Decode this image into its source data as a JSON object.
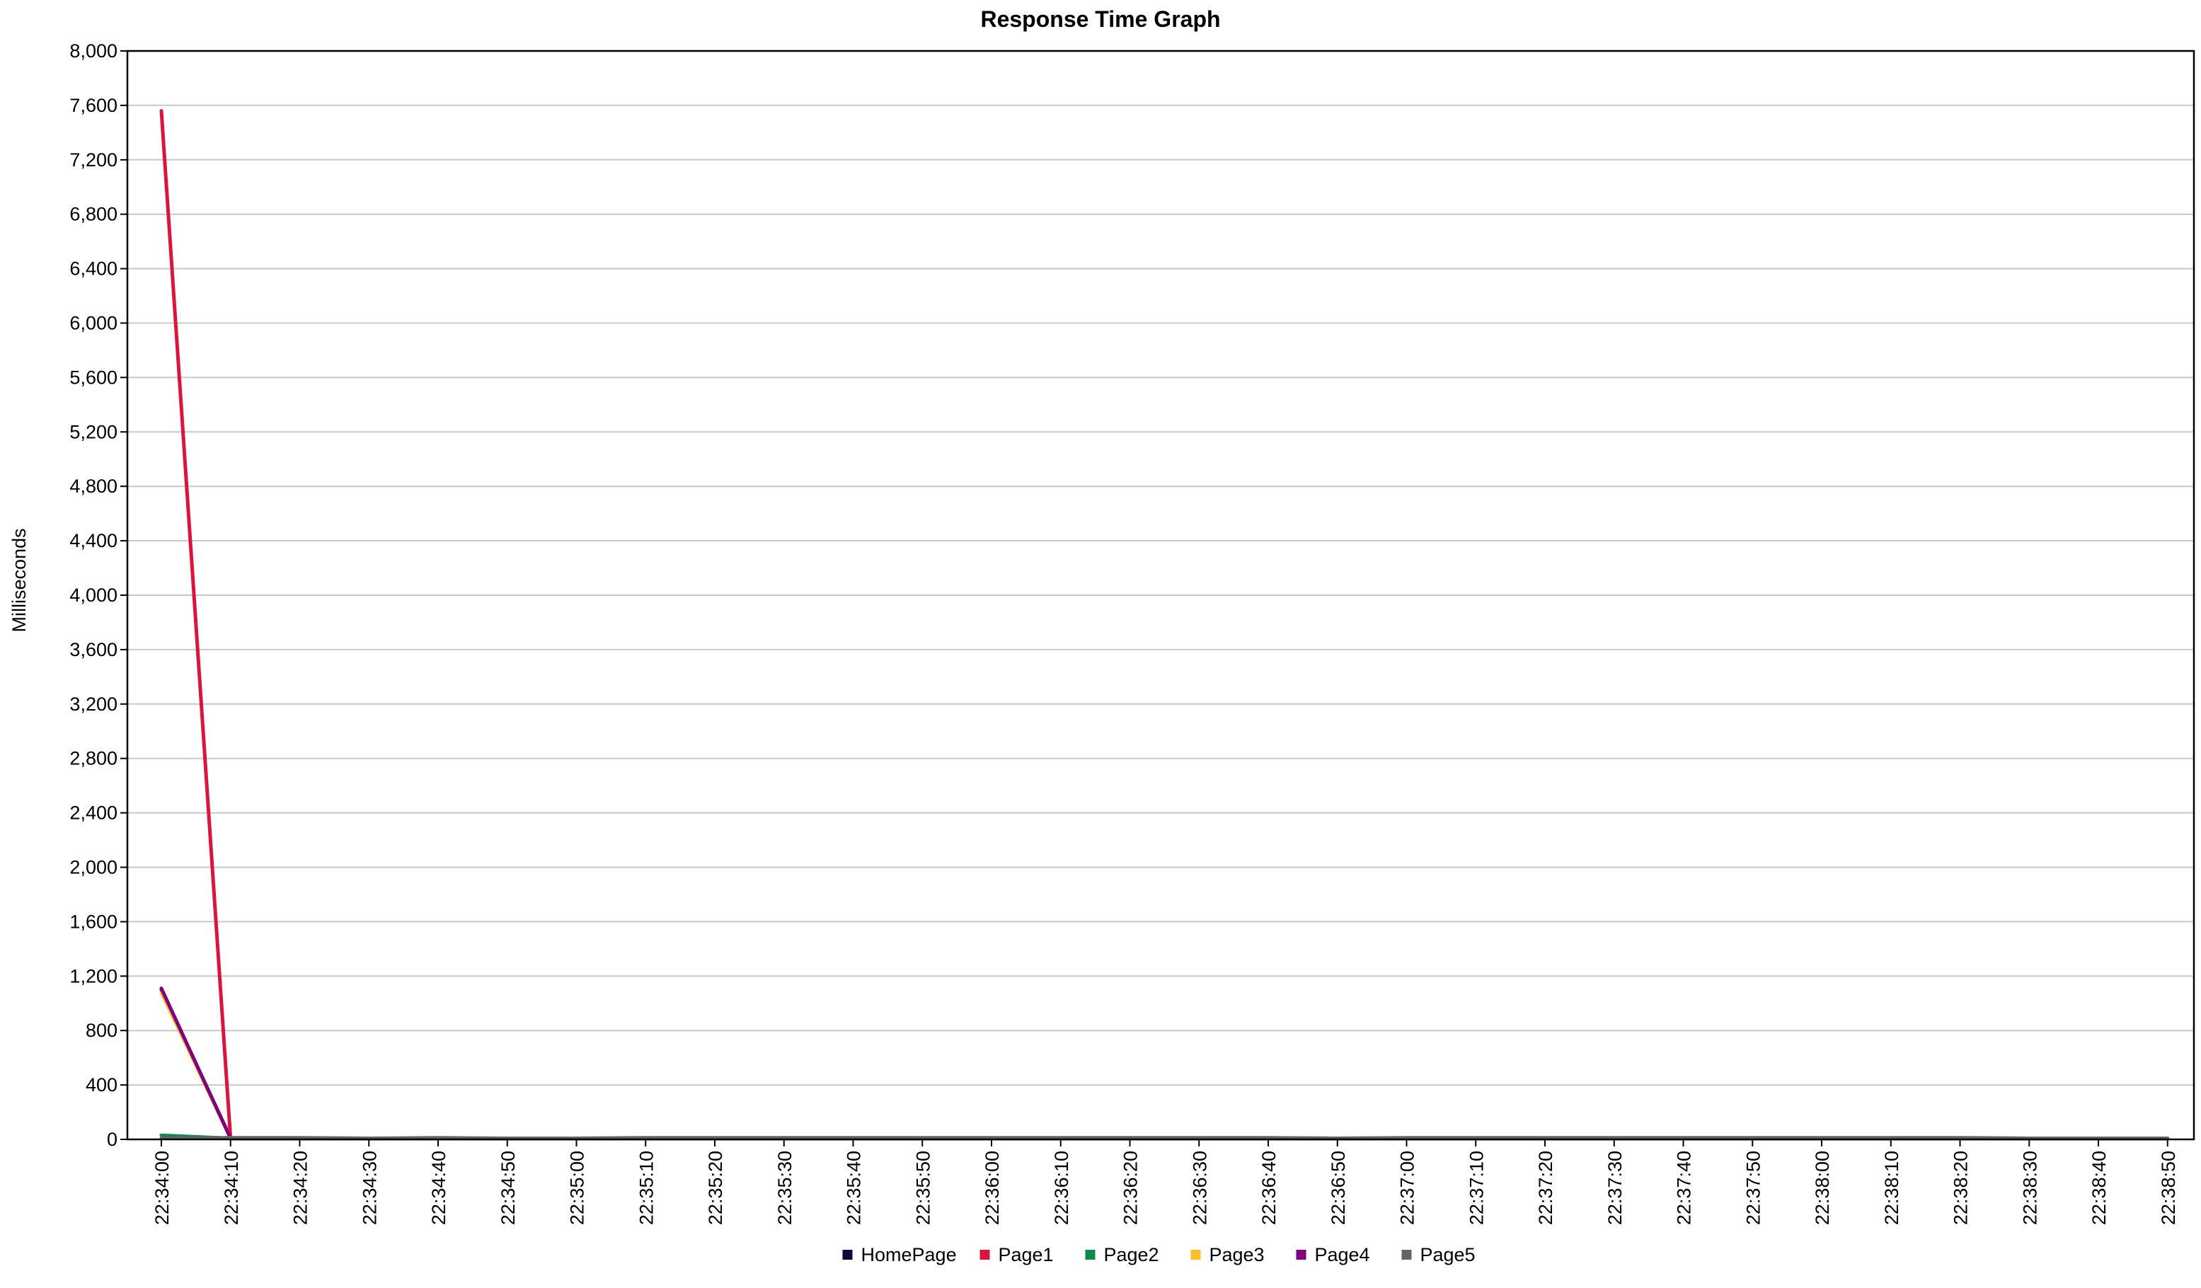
{
  "chart_data": {
    "type": "line",
    "title": "Response Time Graph",
    "xlabel": "",
    "ylabel": "Milliseconds",
    "ylim": [
      0,
      8000
    ],
    "yticks": [
      0,
      400,
      800,
      1200,
      1600,
      2000,
      2400,
      2800,
      3200,
      3600,
      4000,
      4400,
      4800,
      5200,
      5600,
      6000,
      6400,
      6800,
      7200,
      7600,
      8000
    ],
    "ytick_labels": [
      "0",
      "400",
      "800",
      "1,200",
      "1,600",
      "2,000",
      "2,400",
      "2,800",
      "3,200",
      "3,600",
      "4,000",
      "4,400",
      "4,800",
      "5,200",
      "5,600",
      "6,000",
      "6,400",
      "6,800",
      "7,200",
      "7,600",
      "8,000"
    ],
    "x": [
      "22:34:00",
      "22:34:10",
      "22:34:20",
      "22:34:30",
      "22:34:40",
      "22:34:50",
      "22:35:00",
      "22:35:10",
      "22:35:20",
      "22:35:30",
      "22:35:40",
      "22:35:50",
      "22:36:00",
      "22:36:10",
      "22:36:20",
      "22:36:30",
      "22:36:40",
      "22:36:50",
      "22:37:00",
      "22:37:10",
      "22:37:20",
      "22:37:30",
      "22:37:40",
      "22:37:50",
      "22:38:00",
      "22:38:10",
      "22:38:20",
      "22:38:30",
      "22:38:40",
      "22:38:50"
    ],
    "grid": true,
    "legend_position": "bottom",
    "series": [
      {
        "name": "HomePage",
        "color": "#0a0a3c",
        "values": [
          1100,
          10,
          10,
          8,
          8,
          8,
          8,
          10,
          10,
          10,
          10,
          10,
          10,
          10,
          10,
          10,
          10,
          8,
          10,
          10,
          10,
          10,
          10,
          10,
          10,
          10,
          10,
          8,
          8,
          8
        ]
      },
      {
        "name": "Page1",
        "color": "#dc143c",
        "values": [
          7560,
          5,
          5,
          5,
          5,
          5,
          5,
          5,
          5,
          5,
          5,
          5,
          5,
          5,
          5,
          5,
          5,
          5,
          5,
          5,
          5,
          5,
          5,
          5,
          5,
          5,
          5,
          5,
          5,
          5
        ]
      },
      {
        "name": "Page2",
        "color": "#0c8a4a",
        "values": [
          30,
          8,
          8,
          6,
          8,
          6,
          6,
          8,
          8,
          8,
          8,
          8,
          8,
          8,
          8,
          8,
          8,
          6,
          8,
          8,
          8,
          8,
          8,
          8,
          8,
          8,
          8,
          6,
          6,
          6
        ]
      },
      {
        "name": "Page3",
        "color": "#fdbe2c",
        "values": [
          1080,
          8,
          8,
          6,
          8,
          6,
          6,
          8,
          8,
          8,
          8,
          8,
          8,
          8,
          8,
          8,
          8,
          6,
          8,
          8,
          8,
          8,
          8,
          8,
          8,
          8,
          8,
          6,
          6,
          6
        ]
      },
      {
        "name": "Page4",
        "color": "#800080",
        "values": [
          1110,
          8,
          8,
          6,
          8,
          6,
          6,
          8,
          8,
          8,
          8,
          8,
          8,
          8,
          8,
          8,
          8,
          6,
          8,
          8,
          8,
          8,
          8,
          8,
          8,
          8,
          8,
          6,
          6,
          6
        ]
      },
      {
        "name": "Page5",
        "color": "#646464",
        "values": [
          10,
          12,
          12,
          8,
          12,
          8,
          8,
          12,
          12,
          12,
          12,
          12,
          12,
          12,
          12,
          12,
          12,
          8,
          12,
          12,
          12,
          12,
          12,
          12,
          12,
          12,
          12,
          8,
          8,
          8
        ]
      }
    ]
  }
}
